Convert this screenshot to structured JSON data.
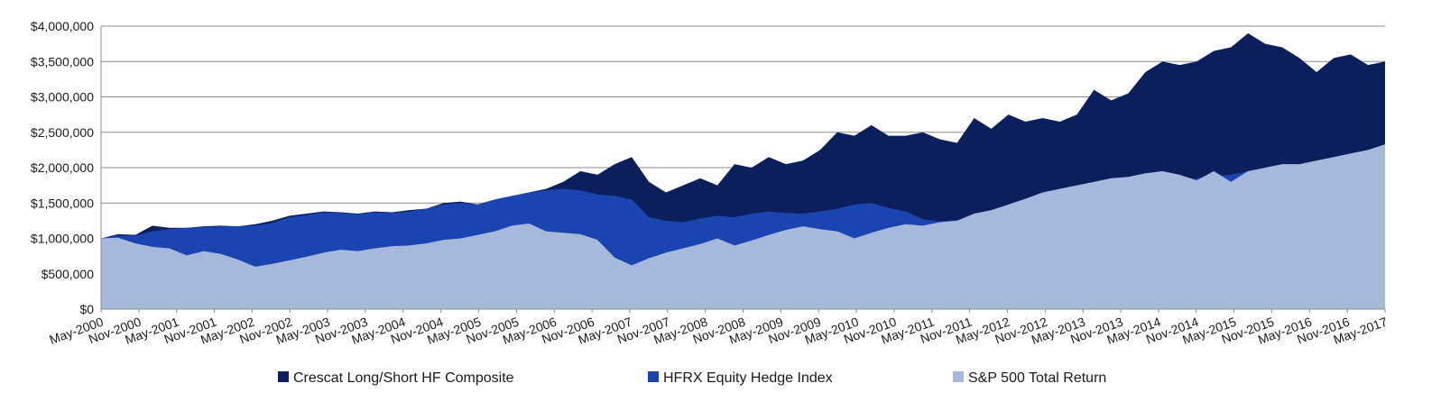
{
  "chart_data": {
    "type": "area",
    "title": "",
    "xlabel": "",
    "ylabel": "",
    "ylim": [
      0,
      4000000
    ],
    "y_ticks": [
      "$0",
      "$500,000",
      "$1,000,000",
      "$1,500,000",
      "$2,000,000",
      "$2,500,000",
      "$3,000,000",
      "$3,500,000",
      "$4,000,000"
    ],
    "x_tick_labels": [
      "May-2000",
      "Nov-2000",
      "May-2001",
      "Nov-2001",
      "May-2002",
      "Nov-2002",
      "May-2003",
      "Nov-2003",
      "May-2004",
      "Nov-2004",
      "May-2005",
      "Nov-2005",
      "May-2006",
      "Nov-2006",
      "May-2007",
      "Nov-2007",
      "May-2008",
      "Nov-2008",
      "May-2009",
      "Nov-2009",
      "May-2010",
      "Nov-2010",
      "May-2011",
      "Nov-2011",
      "May-2012",
      "Nov-2012",
      "May-2013",
      "Nov-2013",
      "May-2014",
      "Nov-2014",
      "May-2015",
      "Nov-2015",
      "May-2016",
      "Nov-2016",
      "May-2017"
    ],
    "grid": true,
    "legend_position": "bottom",
    "colors": {
      "crescat": "#0b1f5c",
      "hfrx": "#1a45b0",
      "sp500": "#a6b8db"
    },
    "series": [
      {
        "name": "Crescat Long/Short HF Composite",
        "values": [
          1000000,
          1060000,
          1050000,
          1180000,
          1150000,
          1150000,
          1170000,
          1180000,
          1170000,
          1200000,
          1250000,
          1320000,
          1350000,
          1380000,
          1370000,
          1350000,
          1380000,
          1370000,
          1400000,
          1420000,
          1500000,
          1520000,
          1480000,
          1550000,
          1600000,
          1650000,
          1700000,
          1800000,
          1950000,
          1900000,
          2050000,
          2150000,
          1800000,
          1650000,
          1750000,
          1850000,
          1750000,
          2050000,
          2000000,
          2150000,
          2050000,
          2100000,
          2250000,
          2500000,
          2450000,
          2600000,
          2450000,
          2450000,
          2500000,
          2400000,
          2350000,
          2700000,
          2550000,
          2750000,
          2650000,
          2700000,
          2650000,
          2750000,
          3100000,
          2950000,
          3050000,
          3350000,
          3500000,
          3450000,
          3500000,
          3650000,
          3700000,
          3900000,
          3750000,
          3700000,
          3550000,
          3350000,
          3550000,
          3600000,
          3450000,
          3500000
        ]
      },
      {
        "name": "HFRX Equity Hedge Index",
        "values": [
          1000000,
          1040000,
          1040000,
          1100000,
          1130000,
          1150000,
          1160000,
          1170000,
          1170000,
          1180000,
          1220000,
          1300000,
          1330000,
          1370000,
          1360000,
          1340000,
          1370000,
          1360000,
          1380000,
          1420000,
          1480000,
          1500000,
          1480000,
          1550000,
          1600000,
          1650000,
          1680000,
          1700000,
          1680000,
          1620000,
          1600000,
          1550000,
          1300000,
          1250000,
          1230000,
          1280000,
          1320000,
          1300000,
          1350000,
          1380000,
          1360000,
          1350000,
          1380000,
          1420000,
          1480000,
          1500000,
          1430000,
          1380000,
          1270000,
          1240000,
          1260000,
          1280000,
          1250000,
          1300000,
          1350000,
          1400000,
          1450000,
          1500000,
          1550000,
          1600000,
          1650000,
          1700000,
          1750000,
          1800000,
          1850000,
          1880000,
          1900000,
          1950000,
          1950000,
          2000000,
          2050000,
          2050000,
          2100000,
          2200000,
          2250000,
          2300000
        ]
      },
      {
        "name": "S&P 500 Total Return",
        "values": [
          1000000,
          1010000,
          930000,
          880000,
          860000,
          760000,
          820000,
          780000,
          700000,
          600000,
          640000,
          690000,
          740000,
          800000,
          840000,
          820000,
          860000,
          890000,
          900000,
          930000,
          980000,
          1000000,
          1050000,
          1100000,
          1180000,
          1210000,
          1100000,
          1080000,
          1060000,
          980000,
          730000,
          620000,
          720000,
          800000,
          860000,
          920000,
          1000000,
          900000,
          970000,
          1050000,
          1120000,
          1170000,
          1130000,
          1100000,
          1000000,
          1080000,
          1150000,
          1200000,
          1180000,
          1230000,
          1250000,
          1350000,
          1400000,
          1480000,
          1560000,
          1650000,
          1700000,
          1750000,
          1800000,
          1850000,
          1870000,
          1920000,
          1950000,
          1900000,
          1820000,
          1950000,
          1800000,
          1950000,
          2000000,
          2050000,
          2050000,
          2100000,
          2150000,
          2200000,
          2250000,
          2330000
        ]
      }
    ]
  }
}
